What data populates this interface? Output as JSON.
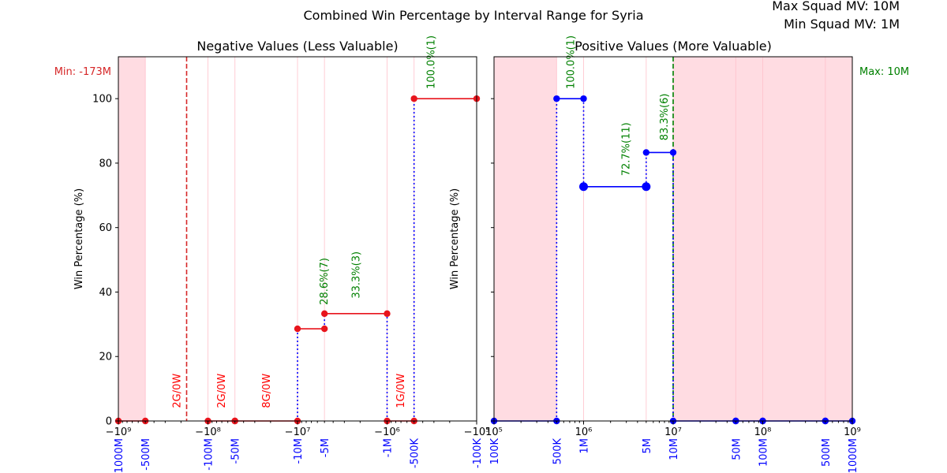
{
  "figure": {
    "title": "Combined Win Percentage by Interval Range for Syria",
    "info_max": "Max Squad MV: 10M",
    "info_min": "Min Squad MV: 1M"
  },
  "chart_data": [
    {
      "type": "line",
      "title": "Negative Values (Less Valuable)",
      "ylabel": "Win Percentage (%)",
      "xscale": "symlog",
      "xlim": [
        -1000000000,
        -100000
      ],
      "ylim": [
        0,
        113
      ],
      "yticks": [
        0,
        20,
        40,
        60,
        80,
        100
      ],
      "xticks_major": [
        {
          "value": -1000000000,
          "label": "−10⁹"
        },
        {
          "value": -100000000,
          "label": "−10⁸"
        },
        {
          "value": -10000000,
          "label": "−10⁷"
        },
        {
          "value": -1000000,
          "label": "−10⁶"
        },
        {
          "value": -100000,
          "label": "−10⁵"
        }
      ],
      "interval_labels": [
        {
          "value": -1000000000,
          "label": "-1000M"
        },
        {
          "value": -500000000,
          "label": "-500M"
        },
        {
          "value": -100000000,
          "label": "-100M"
        },
        {
          "value": -50000000,
          "label": "-50M"
        },
        {
          "value": -10000000,
          "label": "-10M"
        },
        {
          "value": -5000000,
          "label": "-5M"
        },
        {
          "value": -1000000,
          "label": "-1M"
        },
        {
          "value": -500000,
          "label": "-500K"
        },
        {
          "value": -100000,
          "label": "-100K"
        }
      ],
      "shaded_ranges": [
        [
          -1000000000,
          -500000000
        ]
      ],
      "ref_line": {
        "value": -173000000,
        "label": "Min: -173M",
        "color": "#d62728"
      },
      "line_color": "#e8141c",
      "segments": [
        {
          "x0": -1000000000,
          "x1": -500000000,
          "y": 0
        },
        {
          "x0": -100000000,
          "x1": -50000000,
          "y": 0
        },
        {
          "x0": -50000000,
          "x1": -10000000,
          "y": 0
        },
        {
          "x0": -10000000,
          "x1": -5000000,
          "y": 28.6
        },
        {
          "x0": -5000000,
          "x1": -1000000,
          "y": 33.3
        },
        {
          "x0": -1000000,
          "x1": -500000,
          "y": 0
        },
        {
          "x0": -500000,
          "x1": -100000,
          "y": 100
        }
      ],
      "connectors": [
        {
          "x": -10000000,
          "y0": 0,
          "y1": 28.6
        },
        {
          "x": -5000000,
          "y0": 28.6,
          "y1": 33.3
        },
        {
          "x": -1000000,
          "y0": 0,
          "y1": 33.3
        },
        {
          "x": -500000,
          "y0": 0,
          "y1": 100
        }
      ],
      "annotations": [
        {
          "x": -5000000,
          "y": 36,
          "text": "28.6%(7)",
          "color": "#008000"
        },
        {
          "x": -2200000,
          "y": 38,
          "text": "33.3%(3)",
          "color": "#008000"
        },
        {
          "x": -320000,
          "y": 103,
          "text": "100.0%(1)",
          "color": "#008000"
        },
        {
          "x": -220000000,
          "y": 4,
          "text": "2G/0W",
          "color": "#ff0000"
        },
        {
          "x": -70000000,
          "y": 4,
          "text": "2G/0W",
          "color": "#ff0000"
        },
        {
          "x": -22000000,
          "y": 4,
          "text": "8G/0W",
          "color": "#ff0000"
        },
        {
          "x": -700000,
          "y": 4,
          "text": "1G/0W",
          "color": "#ff0000"
        }
      ]
    },
    {
      "type": "line",
      "title": "Positive Values (More Valuable)",
      "ylabel": "Win Percentage (%)",
      "xscale": "log",
      "xlim": [
        100000,
        1000000000
      ],
      "ylim": [
        0,
        113
      ],
      "yticks": [
        0,
        20,
        40,
        60,
        80,
        100
      ],
      "xticks_major": [
        {
          "value": 100000,
          "label": "10⁵"
        },
        {
          "value": 1000000,
          "label": "10⁶"
        },
        {
          "value": 10000000,
          "label": "10⁷"
        },
        {
          "value": 100000000,
          "label": "10⁸"
        },
        {
          "value": 1000000000,
          "label": "10⁹"
        }
      ],
      "interval_labels": [
        {
          "value": 100000,
          "label": "100K"
        },
        {
          "value": 500000,
          "label": "500K"
        },
        {
          "value": 1000000,
          "label": "1M"
        },
        {
          "value": 5000000,
          "label": "5M"
        },
        {
          "value": 10000000,
          "label": "10M"
        },
        {
          "value": 50000000,
          "label": "50M"
        },
        {
          "value": 100000000,
          "label": "100M"
        },
        {
          "value": 500000000,
          "label": "500M"
        },
        {
          "value": 1000000000,
          "label": "1000M"
        }
      ],
      "shaded_ranges": [
        [
          100000,
          500000
        ],
        [
          10000000,
          1000000000
        ]
      ],
      "ref_line": {
        "value": 10000000,
        "label": "Max: 10M",
        "color": "#008000"
      },
      "line_color": "#0000ff",
      "segments": [
        {
          "x0": 100000,
          "x1": 500000,
          "y": 0
        },
        {
          "x0": 500000,
          "x1": 1000000,
          "y": 100
        },
        {
          "x0": 1000000,
          "x1": 5000000,
          "y": 72.7
        },
        {
          "x0": 5000000,
          "x1": 10000000,
          "y": 83.3
        },
        {
          "x0": 10000000,
          "x1": 50000000,
          "y": 0
        },
        {
          "x0": 50000000,
          "x1": 100000000,
          "y": 0
        },
        {
          "x0": 100000000,
          "x1": 500000000,
          "y": 0
        },
        {
          "x0": 500000000,
          "x1": 1000000000,
          "y": 0
        }
      ],
      "connectors": [
        {
          "x": 500000,
          "y0": 0,
          "y1": 100
        },
        {
          "x": 1000000,
          "y0": 72.7,
          "y1": 100
        },
        {
          "x": 5000000,
          "y0": 72.7,
          "y1": 83.3
        },
        {
          "x": 10000000,
          "y0": 0,
          "y1": 83.3
        }
      ],
      "annotations": [
        {
          "x": 720000,
          "y": 103,
          "text": "100.0%(1)",
          "color": "#008000"
        },
        {
          "x": 3000000,
          "y": 76,
          "text": "72.7%(11)",
          "color": "#008000"
        },
        {
          "x": 8000000,
          "y": 87,
          "text": "83.3%(6)",
          "color": "#008000"
        }
      ]
    }
  ]
}
